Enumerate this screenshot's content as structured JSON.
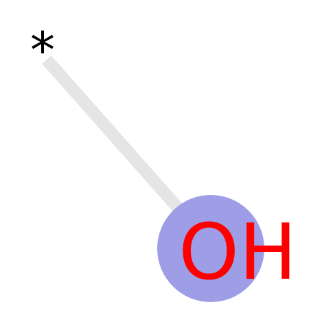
{
  "molecule": {
    "atoms": [
      {
        "id": "dummy",
        "label": "*",
        "color": "#000000"
      },
      {
        "id": "oxygen",
        "label": "OH",
        "color": "#ff0000",
        "highlight": "#9e9ee6"
      }
    ],
    "bonds": [
      {
        "from": "dummy",
        "to": "oxygen",
        "color": "#e5e5e5"
      }
    ]
  }
}
